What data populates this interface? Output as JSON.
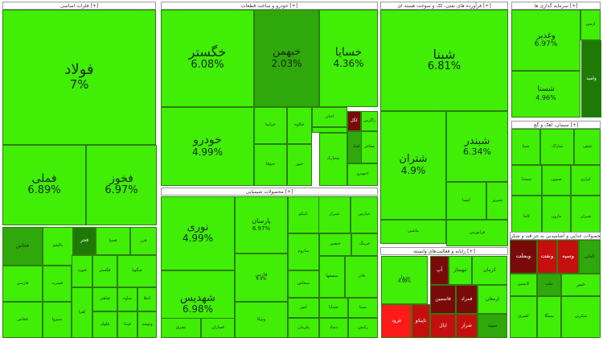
{
  "chart_data": {
    "type": "treemap",
    "colors": {
      "bright_green": "#40ee06",
      "mid_green": "#2ea80a",
      "dark_green": "#1e7a05",
      "dark_red": "#7a0a0a",
      "red": "#c50f0f",
      "bright_red": "#ff1a1a",
      "border": "#2e7d0f"
    },
    "sectors": [
      {
        "title": "فلزات اساسی [+]"
      },
      {
        "title": "خودرو و ساخت قطعات [+]"
      },
      {
        "title": "فرآورده های نفتی، کک و سوخت هسته ای [+]"
      },
      {
        "title": "سرمایه گذاری ها [+]"
      },
      {
        "title": "سیمان، آهک و گچ [+]"
      },
      {
        "title": "محصولات شیمیایی [+]"
      },
      {
        "title": "رایانه و فعالیت‌های وابسته [+]"
      },
      {
        "title": "محصولات غذایی و آشامیدنی به جز قند و شکر [+]"
      }
    ],
    "tiles": [
      {
        "name": "فولاد",
        "change": "7%"
      },
      {
        "name": "فملی",
        "change": "6.89%"
      },
      {
        "name": "فخوز",
        "change": "6.97%"
      },
      {
        "name": "خگستر",
        "change": "6.08%"
      },
      {
        "name": "خبهمن",
        "change": "2.03%"
      },
      {
        "name": "خسایا",
        "change": "4.36%"
      },
      {
        "name": "خودرو",
        "change": "4.99%"
      },
      {
        "name": "شبنا",
        "change": "6.81%"
      },
      {
        "name": "شبندر",
        "change": "6.34%"
      },
      {
        "name": "شتران",
        "change": "4.9%"
      },
      {
        "name": "وغدیر",
        "change": "6.97%"
      },
      {
        "name": "شستا",
        "change": "4.96%"
      },
      {
        "name": "نوری",
        "change": "4.99%"
      },
      {
        "name": "شهدیس",
        "change": "6.98%"
      },
      {
        "name": "پارسان",
        "change": "6.97%"
      },
      {
        "name": "فارس",
        "change": "4.9%"
      },
      {
        "name": "پترول",
        "change": "4.99%"
      },
      {
        "name": "تاپیکو",
        "change": "5.3%"
      },
      {
        "name": "فخاس"
      },
      {
        "name": "فجر"
      },
      {
        "name": "فسپا"
      },
      {
        "name": "فزر"
      },
      {
        "name": "خزامیا"
      },
      {
        "name": "خکاوه"
      },
      {
        "name": "اخابر"
      },
      {
        "name": "کگل"
      },
      {
        "name": "زاگرس"
      },
      {
        "name": "ختوقا"
      },
      {
        "name": "ختور"
      },
      {
        "name": "شخارک"
      },
      {
        "name": "کچاد"
      },
      {
        "name": "شاوان"
      },
      {
        "name": "آپ"
      },
      {
        "name": "ثبهساز"
      },
      {
        "name": "کرمان"
      },
      {
        "name": "فاسمین"
      },
      {
        "name": "فمراد"
      },
      {
        "name": "ارمغان"
      },
      {
        "name": "وبملت"
      },
      {
        "name": "ونفت"
      },
      {
        "name": "وسپه"
      },
      {
        "name": "ثامان"
      },
      {
        "name": "وامید"
      },
      {
        "name": "شپنا"
      },
      {
        "name": "شاراک"
      },
      {
        "name": "شفن"
      },
      {
        "name": "شیراز"
      },
      {
        "name": "خپارس"
      },
      {
        "name": "خنصیر"
      },
      {
        "name": "خرینگ"
      },
      {
        "name": "ساروم"
      },
      {
        "name": "سخاش"
      },
      {
        "name": "سصفها"
      },
      {
        "name": "فاذر"
      },
      {
        "name": "کنور"
      },
      {
        "name": "خساپا"
      },
      {
        "name": "سیتا"
      },
      {
        "name": "پاکشو"
      },
      {
        "name": "فارسی"
      },
      {
        "name": "فسرب"
      },
      {
        "name": "فنورد"
      },
      {
        "name": "فگستر"
      },
      {
        "name": "شگویا"
      },
      {
        "name": "کیمیا"
      },
      {
        "name": "شبریز"
      },
      {
        "name": "فرابورس"
      },
      {
        "name": "صنوین"
      },
      {
        "name": "کرازی"
      },
      {
        "name": "شستا"
      },
      {
        "name": "مارون"
      },
      {
        "name": "شیران"
      },
      {
        "name": "کاما"
      },
      {
        "name": "فرود"
      },
      {
        "name": "تاپیکو"
      },
      {
        "name": "اپال"
      },
      {
        "name": "شراز"
      },
      {
        "name": "سپید"
      },
      {
        "name": "کاسپین"
      },
      {
        "name": "ملت"
      },
      {
        "name": "خیبر"
      },
      {
        "name": "کشرق"
      },
      {
        "name": "سمگا"
      },
      {
        "name": "شکربن"
      },
      {
        "name": "فخاس"
      },
      {
        "name": "سبزوا"
      },
      {
        "name": "کفرا"
      },
      {
        "name": "فباهنر"
      },
      {
        "name": "ساوه"
      },
      {
        "name": "اعتلا"
      },
      {
        "name": "فلوله"
      },
      {
        "name": "فپنتا"
      },
      {
        "name": "وتوشه"
      },
      {
        "name": "ثشرق"
      },
      {
        "name": "فسازان"
      },
      {
        "name": "وتوکا"
      },
      {
        "name": "پکرمان"
      },
      {
        "name": "دتماد"
      },
      {
        "name": "رکیش"
      },
      {
        "name": "ماشین"
      },
      {
        "name": "رتاپ"
      },
      {
        "name": "مفاخر"
      },
      {
        "name": "اخودرو"
      },
      {
        "name": "سیسکو"
      },
      {
        "name": "ازمین"
      },
      {
        "name": "تکمبا"
      },
      {
        "name": "ارفع"
      },
      {
        "name": "تاپکیش"
      },
      {
        "name": "فن آوا"
      },
      {
        "name": "قصفها"
      },
      {
        "name": "غگل"
      },
      {
        "name": "غکورش"
      },
      {
        "name": "غمهرا"
      },
      {
        "name": "غمارگ"
      },
      {
        "name": "وبشهر"
      },
      {
        "name": "بهپاک"
      },
      {
        "name": "غشهد"
      },
      {
        "name": "خعقاب"
      },
      {
        "name": "غپاک"
      },
      {
        "name": "ددام"
      },
      {
        "name": "امین"
      },
      {
        "name": "غنوش"
      },
      {
        "name": "غدیس"
      },
      {
        "name": "تکشا"
      },
      {
        "name": "پی پاد"
      },
      {
        "name": "آریا"
      },
      {
        "name": "کفرآور"
      },
      {
        "name": "ثنظام"
      },
      {
        "name": "کوثر"
      },
      {
        "name": "حفاری"
      }
    ]
  }
}
